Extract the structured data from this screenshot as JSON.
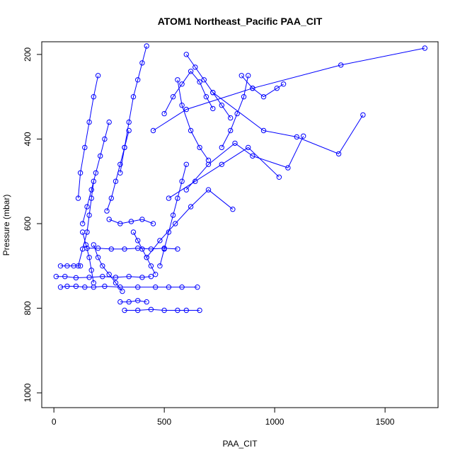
{
  "chart_data": {
    "type": "line",
    "title": "ATOM1 Northeast_Pacific PAA_CIT",
    "xlabel": "PAA_CIT",
    "ylabel": "Pressure (mbar)",
    "xlim": [
      -55,
      1740
    ],
    "ylim": [
      1035,
      170
    ],
    "y_reversed": true,
    "xticks": [
      0,
      500,
      1000,
      1500
    ],
    "yticks": [
      200,
      400,
      600,
      800,
      1000
    ],
    "grid": false,
    "marker": "open-circle",
    "color": "#0000ff",
    "series": [
      {
        "x": [
          30,
          60,
          100,
          140,
          180,
          230,
          300,
          380,
          460,
          520,
          580,
          650
        ],
        "y": [
          750,
          748,
          748,
          750,
          750,
          748,
          750,
          750,
          750,
          750,
          750,
          750
        ]
      },
      {
        "x": [
          10,
          50,
          100,
          160,
          220,
          280,
          340,
          400,
          440
        ],
        "y": [
          725,
          725,
          728,
          727,
          725,
          727,
          725,
          727,
          725
        ]
      },
      {
        "x": [
          30,
          60,
          90,
          120
        ],
        "y": [
          700,
          700,
          700,
          700
        ]
      },
      {
        "x": [
          320,
          380,
          440,
          500,
          560,
          600,
          660
        ],
        "y": [
          805,
          805,
          803,
          805,
          805,
          805,
          805
        ]
      },
      {
        "x": [
          300,
          340,
          380,
          420
        ],
        "y": [
          785,
          785,
          782,
          785
        ]
      },
      {
        "x": [
          150,
          200,
          260,
          320,
          380,
          440,
          500,
          560
        ],
        "y": [
          658,
          658,
          660,
          660,
          658,
          660,
          658,
          660
        ]
      },
      {
        "x": [
          1680,
          1300,
          900,
          600,
          450
        ],
        "y": [
          185,
          225,
          280,
          330,
          380
        ]
      },
      {
        "x": [
          1400,
          1290,
          1100,
          950,
          720
        ],
        "y": [
          343,
          435,
          395,
          380,
          290
        ]
      },
      {
        "x": [
          1130,
          1060,
          900,
          820,
          700,
          600
        ],
        "y": [
          393,
          468,
          440,
          410,
          460,
          520
        ]
      },
      {
        "x": [
          1040,
          1010,
          950,
          900,
          850
        ],
        "y": [
          270,
          280,
          300,
          280,
          250
        ]
      },
      {
        "x": [
          810,
          700,
          620,
          550,
          480,
          420
        ],
        "y": [
          566,
          520,
          560,
          600,
          640,
          680
        ]
      },
      {
        "x": [
          1020,
          880,
          760,
          640,
          520
        ],
        "y": [
          490,
          420,
          460,
          500,
          540
        ]
      },
      {
        "x": [
          720,
          690,
          660,
          620,
          580,
          540,
          500
        ],
        "y": [
          328,
          300,
          265,
          240,
          270,
          300,
          340
        ]
      },
      {
        "x": [
          200,
          180,
          160,
          140,
          120,
          110
        ],
        "y": [
          250,
          300,
          360,
          420,
          480,
          540
        ]
      },
      {
        "x": [
          420,
          400,
          380,
          360,
          340,
          320,
          300
        ],
        "y": [
          180,
          220,
          260,
          300,
          360,
          420,
          480
        ]
      },
      {
        "x": [
          130,
          150,
          170,
          190,
          210,
          230,
          250
        ],
        "y": [
          600,
          560,
          520,
          480,
          440,
          400,
          360
        ]
      },
      {
        "x": [
          240,
          260,
          280,
          300,
          320,
          340
        ],
        "y": [
          570,
          540,
          500,
          460,
          420,
          380
        ]
      },
      {
        "x": [
          110,
          130,
          150,
          160,
          170,
          180
        ],
        "y": [
          700,
          660,
          620,
          580,
          540,
          500
        ]
      },
      {
        "x": [
          480,
          500,
          520,
          540,
          560,
          580,
          600
        ],
        "y": [
          700,
          660,
          620,
          580,
          540,
          500,
          460
        ]
      },
      {
        "x": [
          250,
          300,
          350,
          400,
          450
        ],
        "y": [
          590,
          600,
          595,
          590,
          600
        ]
      },
      {
        "x": [
          560,
          580,
          620,
          660,
          700
        ],
        "y": [
          260,
          320,
          380,
          420,
          450
        ]
      },
      {
        "x": [
          180,
          200,
          220,
          250,
          280,
          310
        ],
        "y": [
          650,
          680,
          700,
          720,
          740,
          760
        ]
      },
      {
        "x": [
          360,
          380,
          400,
          420,
          440,
          460
        ],
        "y": [
          620,
          640,
          660,
          680,
          700,
          720
        ]
      },
      {
        "x": [
          130,
          145,
          160,
          170,
          180
        ],
        "y": [
          620,
          650,
          680,
          710,
          740
        ]
      },
      {
        "x": [
          600,
          640,
          680,
          720,
          760,
          800
        ],
        "y": [
          200,
          230,
          260,
          290,
          320,
          350
        ]
      },
      {
        "x": [
          880,
          860,
          830,
          800,
          760
        ],
        "y": [
          250,
          300,
          340,
          380,
          420
        ]
      }
    ]
  }
}
